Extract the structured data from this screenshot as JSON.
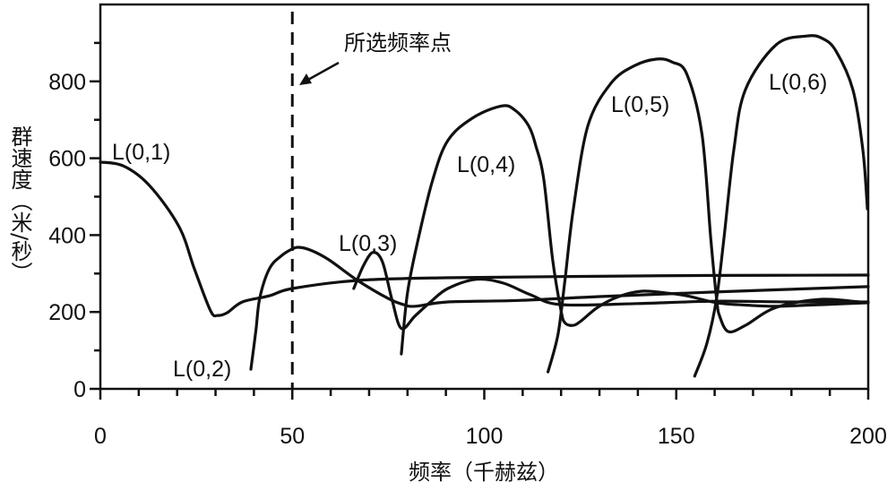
{
  "chart_data": {
    "type": "line",
    "xlabel": "频率（千赫兹）",
    "ylabel": "群速度（米/秒）",
    "xlim": [
      0,
      200
    ],
    "ylim": [
      0,
      1000
    ],
    "x_major_ticks": [
      0,
      50,
      100,
      150,
      200
    ],
    "x_tick_labels": [
      "0",
      "50",
      "100",
      "150",
      "200"
    ],
    "y_major_ticks": [
      0,
      200,
      400,
      600,
      800
    ],
    "y_tick_labels": [
      "0",
      "200",
      "400",
      "600",
      "800"
    ],
    "grid": false,
    "annotation": {
      "text": "所选频率点",
      "x": 50,
      "style": "dashed vertical line with arrow"
    },
    "series": [
      {
        "name": "L(0,1)",
        "points": [
          [
            0,
            590
          ],
          [
            6,
            580
          ],
          [
            12.8,
            529
          ],
          [
            20.5,
            422
          ],
          [
            24.5,
            312
          ],
          [
            28.7,
            203
          ],
          [
            30.6,
            191
          ],
          [
            33,
            198
          ],
          [
            37,
            226
          ],
          [
            44,
            242
          ],
          [
            50,
            261
          ],
          [
            67,
            282
          ],
          [
            90,
            289
          ],
          [
            120,
            292
          ],
          [
            160,
            295
          ],
          [
            200,
            296
          ]
        ]
      },
      {
        "name": "L(0,2)",
        "points": [
          [
            39.2,
            51
          ],
          [
            40.5,
            150
          ],
          [
            41.5,
            235
          ],
          [
            44,
            312
          ],
          [
            47,
            345
          ],
          [
            50,
            364
          ],
          [
            52,
            368
          ],
          [
            55,
            360
          ],
          [
            59.5,
            336
          ],
          [
            67,
            282
          ],
          [
            75,
            235
          ],
          [
            79,
            219
          ],
          [
            82,
            215
          ],
          [
            90.5,
            226
          ],
          [
            109,
            230
          ],
          [
            130,
            240
          ],
          [
            160,
            252
          ],
          [
            200,
            266
          ]
        ]
      },
      {
        "name": "L(0,3)",
        "points": [
          [
            66,
            261
          ],
          [
            68.5,
            320
          ],
          [
            71,
            355
          ],
          [
            73.5,
            330
          ],
          [
            76,
            230
          ],
          [
            78.4,
            157
          ],
          [
            82,
            190
          ],
          [
            86,
            226
          ],
          [
            90.5,
            261
          ],
          [
            98,
            285
          ],
          [
            105,
            275
          ],
          [
            112,
            245
          ],
          [
            120,
            219
          ],
          [
            140,
            222
          ],
          [
            160,
            228
          ],
          [
            180,
            226
          ],
          [
            200,
            226
          ]
        ]
      },
      {
        "name": "L(0,4)",
        "points": [
          [
            78.4,
            91
          ],
          [
            80,
            250
          ],
          [
            82.8,
            390
          ],
          [
            86.6,
            545
          ],
          [
            90.5,
            646
          ],
          [
            97,
            705
          ],
          [
            104.5,
            736
          ],
          [
            108,
            725
          ],
          [
            111.5,
            685
          ],
          [
            113.5,
            630
          ],
          [
            115.5,
            545
          ],
          [
            117.8,
            336
          ],
          [
            120,
            203
          ],
          [
            121,
            172
          ],
          [
            123,
            165
          ],
          [
            125,
            175
          ],
          [
            129.5,
            212
          ],
          [
            135,
            240
          ],
          [
            141,
            254
          ],
          [
            147,
            250
          ],
          [
            152.8,
            242
          ],
          [
            160.5,
            224
          ],
          [
            168,
            218
          ],
          [
            176,
            215
          ],
          [
            190,
            220
          ],
          [
            200,
            224
          ]
        ]
      },
      {
        "name": "L(0,5)",
        "points": [
          [
            116.6,
            44
          ],
          [
            119.2,
            142
          ],
          [
            121,
            282
          ],
          [
            123.2,
            468
          ],
          [
            127,
            685
          ],
          [
            133,
            795
          ],
          [
            139,
            840
          ],
          [
            145,
            858
          ],
          [
            149,
            850
          ],
          [
            152.8,
            818
          ],
          [
            156.7,
            662
          ],
          [
            159,
            390
          ],
          [
            160.5,
            235
          ],
          [
            161.3,
            189
          ],
          [
            163.6,
            149
          ],
          [
            168,
            165
          ],
          [
            176,
            212
          ],
          [
            188,
            233
          ],
          [
            199.5,
            224
          ]
        ]
      },
      {
        "name": "L(0,6)",
        "points": [
          [
            154.8,
            33
          ],
          [
            158,
            119
          ],
          [
            160.5,
            235
          ],
          [
            162.4,
            390
          ],
          [
            165,
            622
          ],
          [
            168,
            778
          ],
          [
            176,
            895
          ],
          [
            184,
            918
          ],
          [
            188,
            912
          ],
          [
            191.6,
            879
          ],
          [
            196,
            778
          ],
          [
            198.6,
            622
          ],
          [
            199.8,
            468
          ]
        ]
      }
    ]
  }
}
